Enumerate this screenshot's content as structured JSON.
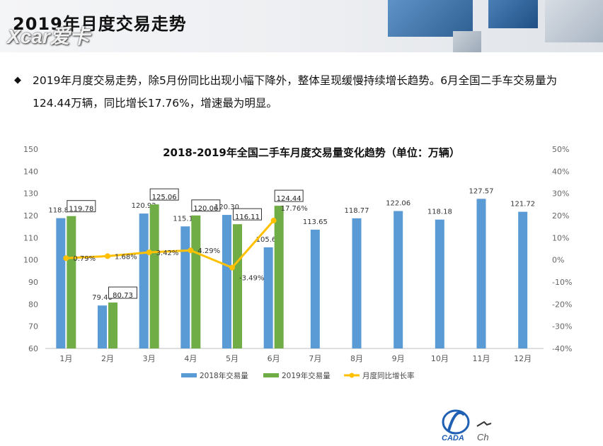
{
  "header": {
    "title": "2019年月度交易走势",
    "watermark": "Xcar爱卡"
  },
  "bullet": {
    "mark": "◆",
    "text": "2019年月度交易走势，除5月份同比出现小幅下降外，整体呈现缓慢持续增长趋势。6月全国二手车交易量为124.44万辆，同比增长17.76%，增速最为明显。"
  },
  "logo": {
    "text": "CADA",
    "partial_text": "Ch"
  },
  "colors": {
    "series_2018": "#5b9bd5",
    "series_2019": "#70ad47",
    "growth": "#ffc000"
  },
  "chart_data": {
    "type": "bar",
    "title": "2018-2019年全国二手车月度交易量变化趋势（单位：万辆）",
    "categories": [
      "1月",
      "2月",
      "3月",
      "4月",
      "5月",
      "6月",
      "7月",
      "8月",
      "9月",
      "10月",
      "11月",
      "12月"
    ],
    "series": [
      {
        "name": "2018年交易量",
        "type": "bar",
        "axis": "left",
        "values": [
          118.84,
          79.4,
          120.92,
          115.12,
          120.3,
          105.67,
          113.65,
          118.77,
          122.06,
          118.18,
          127.57,
          121.72
        ],
        "labels": [
          "118.84",
          "79.40",
          "120.92",
          "115.12",
          "120.30",
          "105.67",
          "113.65",
          "118.77",
          "122.06",
          "118.18",
          "127.57",
          "121.72"
        ]
      },
      {
        "name": "2019年交易量",
        "type": "bar",
        "axis": "left",
        "values": [
          119.78,
          80.73,
          125.06,
          120.06,
          116.11,
          124.44,
          null,
          null,
          null,
          null,
          null,
          null
        ],
        "labels": [
          "119.78",
          "80.73",
          "125.06",
          "120.06",
          "116.11",
          "124.44"
        ]
      },
      {
        "name": "月度同比增长率",
        "type": "line",
        "axis": "right",
        "values": [
          0.79,
          1.68,
          3.42,
          4.29,
          -3.49,
          17.76,
          null,
          null,
          null,
          null,
          null,
          null
        ],
        "labels": [
          "0.79%",
          "1.68%",
          "3.42%",
          "4.29%",
          "-3.49%",
          "17.76%"
        ]
      }
    ],
    "ylim": [
      60,
      150
    ],
    "yticks": [
      "150",
      "140",
      "130",
      "120",
      "110",
      "100",
      "90",
      "80",
      "70",
      "60"
    ],
    "y2lim": [
      -40,
      50
    ],
    "y2ticks": [
      "50%",
      "40%",
      "30%",
      "20%",
      "10%",
      "0%",
      "-10%",
      "-20%",
      "-30%",
      "-40%"
    ],
    "legend": "bottom",
    "grid": false
  }
}
